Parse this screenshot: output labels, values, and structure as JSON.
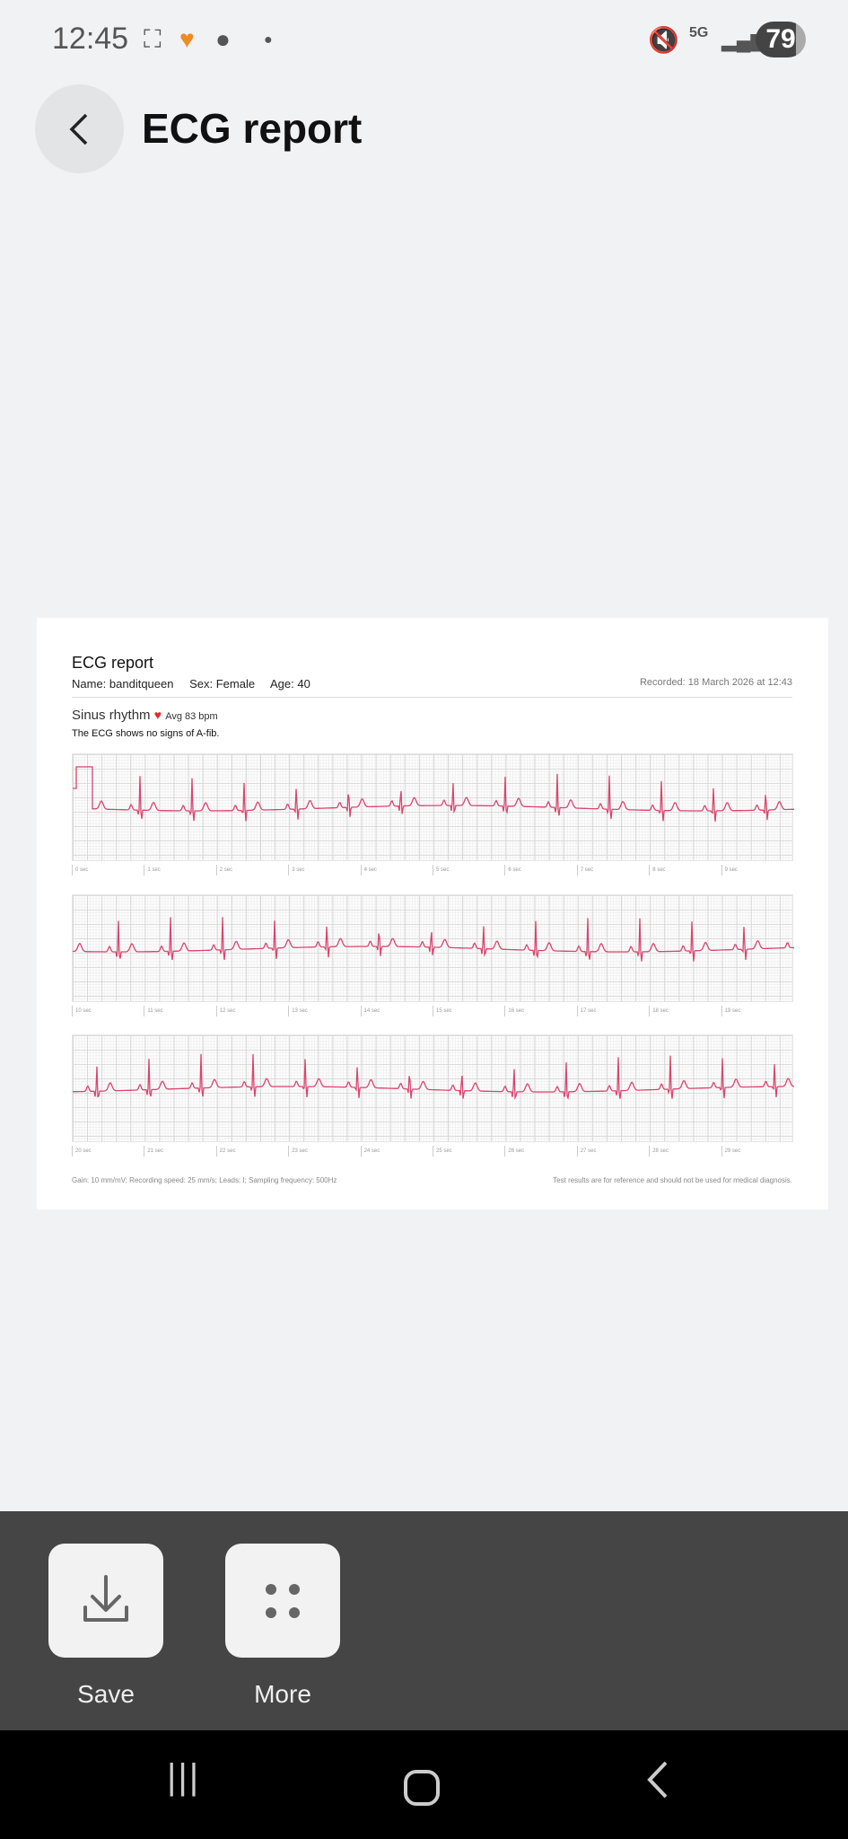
{
  "status_bar": {
    "time": "12:45",
    "network": "5G",
    "battery": "79",
    "icons": [
      "screenshot-icon",
      "health-heart-icon",
      "messenger-icon",
      "dot-icon",
      "mute-vibrate-icon",
      "signal-icon"
    ]
  },
  "header": {
    "title": "ECG report",
    "back_icon": "chevron-left-icon"
  },
  "report": {
    "title": "ECG report",
    "name": "Name: banditqueen",
    "sex": "Sex: Female",
    "age": "Age: 40",
    "recorded": "Recorded: 18 March 2026 at 12:43",
    "rhythm": "Sinus rhythm",
    "avg": "Avg 83 bpm",
    "avg_bpm": 83,
    "summary": "The ECG shows no signs of A-fib.",
    "trace_color": "#d9456e",
    "strips": [
      {
        "ticks": [
          "0 sec",
          "1 sec",
          "2 sec",
          "3 sec",
          "4 sec",
          "5 sec",
          "6 sec",
          "7 sec",
          "8 sec",
          "9 sec"
        ]
      },
      {
        "ticks": [
          "10 sec",
          "11 sec",
          "12 sec",
          "13 sec",
          "14 sec",
          "15 sec",
          "16 sec",
          "17 sec",
          "18 sec",
          "19 sec"
        ]
      },
      {
        "ticks": [
          "20 sec",
          "21 sec",
          "22 sec",
          "23 sec",
          "24 sec",
          "25 sec",
          "26 sec",
          "27 sec",
          "28 sec",
          "29 sec"
        ]
      }
    ],
    "footer_left": "Gain: 10 mm/mV;  Recording speed: 25 mm/s;  Leads: I;  Sampling frequency: 500Hz",
    "footer_right": "Test results are for reference and should not be used for medical diagnosis."
  },
  "actions": [
    {
      "label": "Save",
      "icon": "download-icon"
    },
    {
      "label": "More",
      "icon": "more-dots-icon"
    }
  ],
  "nav": {
    "recents": "recents-icon",
    "home": "home-icon",
    "back": "back-icon"
  }
}
